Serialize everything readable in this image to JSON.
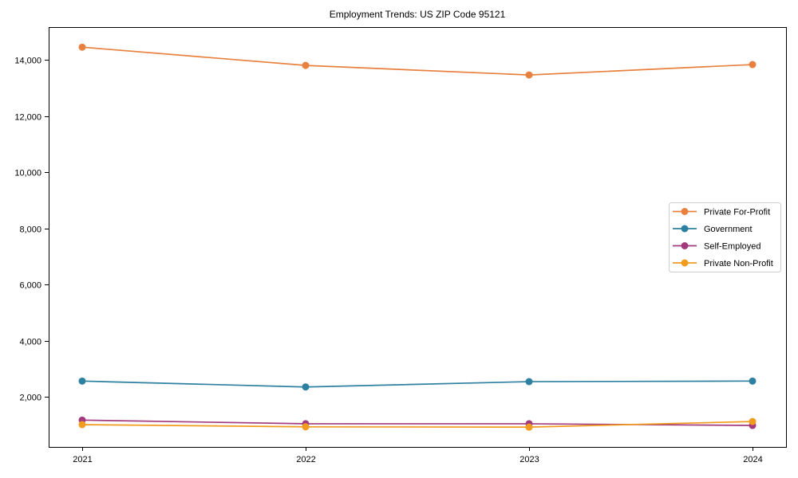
{
  "chart_data": {
    "type": "line",
    "title": "Employment Trends: US ZIP Code 95121",
    "xlabel": "",
    "ylabel": "",
    "x_categories": [
      "2021",
      "2022",
      "2023",
      "2024"
    ],
    "y_ticks": [
      2000,
      4000,
      6000,
      8000,
      10000,
      12000,
      14000
    ],
    "y_tick_labels": [
      "2,000",
      "4,000",
      "6,000",
      "8,000",
      "10,000",
      "12,000",
      "14,000"
    ],
    "ylim": [
      215,
      15165
    ],
    "grid": false,
    "legend_position": "center-right",
    "background_color": "#ffffff",
    "axis_color": "#000000",
    "marker": "circle",
    "series": [
      {
        "name": "Private For-Profit",
        "color": "#E8813F",
        "values": [
          14450,
          13800,
          13460,
          13830
        ]
      },
      {
        "name": "Government",
        "color": "#2E80A0",
        "values": [
          2560,
          2350,
          2540,
          2560
        ]
      },
      {
        "name": "Self-Employed",
        "color": "#A33A7D",
        "values": [
          1170,
          1040,
          1040,
          980
        ]
      },
      {
        "name": "Private Non-Profit",
        "color": "#F29C1F",
        "values": [
          1010,
          930,
          920,
          1120
        ]
      }
    ]
  }
}
